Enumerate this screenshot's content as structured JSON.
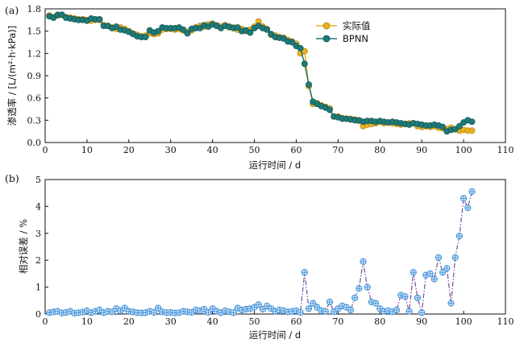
{
  "colors": {
    "actual": "#E8B21F",
    "bpnn": "#1F7A78",
    "error": "#3D8FD8",
    "error_line": "#7A50A0",
    "axis": "#111111"
  },
  "chart_data": [
    {
      "type": "line",
      "panel": "(a)",
      "xlabel": "运行时间 / d",
      "ylabel": "渗透率 / [L/(m²·h·kPa)]",
      "xlim": [
        0,
        110
      ],
      "ylim": [
        0.0,
        1.8
      ],
      "xticks": [
        0,
        10,
        20,
        30,
        40,
        50,
        60,
        70,
        80,
        90,
        100,
        110
      ],
      "yticks": [
        0.0,
        0.3,
        0.6,
        0.9,
        1.2,
        1.5,
        1.8
      ],
      "legend_position": "top-right",
      "x": [
        1,
        2,
        3,
        4,
        5,
        6,
        7,
        8,
        9,
        10,
        11,
        12,
        13,
        14,
        15,
        16,
        17,
        18,
        19,
        20,
        21,
        22,
        23,
        24,
        25,
        26,
        27,
        28,
        29,
        30,
        31,
        32,
        33,
        34,
        35,
        36,
        37,
        38,
        39,
        40,
        41,
        42,
        43,
        44,
        45,
        46,
        47,
        48,
        49,
        50,
        51,
        52,
        53,
        54,
        55,
        56,
        57,
        58,
        59,
        60,
        61,
        62,
        63,
        64,
        65,
        66,
        67,
        68,
        69,
        70,
        71,
        72,
        73,
        74,
        75,
        76,
        77,
        78,
        79,
        80,
        81,
        82,
        83,
        84,
        85,
        86,
        87,
        88,
        89,
        90,
        91,
        92,
        93,
        94,
        95,
        96,
        97,
        98,
        99,
        100,
        101,
        102
      ],
      "series": [
        {
          "name": "实际值",
          "values": [
            1.71,
            1.69,
            1.71,
            1.72,
            1.69,
            1.68,
            1.67,
            1.66,
            1.66,
            1.65,
            1.64,
            1.65,
            1.65,
            1.58,
            1.57,
            1.55,
            1.53,
            1.55,
            1.53,
            1.5,
            1.47,
            1.45,
            1.43,
            1.44,
            1.47,
            1.46,
            1.47,
            1.52,
            1.53,
            1.53,
            1.52,
            1.53,
            1.51,
            1.49,
            1.51,
            1.55,
            1.57,
            1.56,
            1.59,
            1.6,
            1.58,
            1.56,
            1.58,
            1.55,
            1.55,
            1.52,
            1.53,
            1.5,
            1.52,
            1.56,
            1.63,
            1.56,
            1.53,
            1.45,
            1.44,
            1.42,
            1.41,
            1.38,
            1.36,
            1.33,
            1.2,
            1.23,
            0.76,
            0.52,
            0.53,
            0.5,
            0.48,
            0.46,
            0.35,
            0.35,
            0.33,
            0.32,
            0.32,
            0.31,
            0.29,
            0.22,
            0.24,
            0.25,
            0.26,
            0.28,
            0.26,
            0.27,
            0.26,
            0.25,
            0.24,
            0.25,
            0.26,
            0.26,
            0.22,
            0.21,
            0.22,
            0.21,
            0.22,
            0.2,
            0.19,
            0.18,
            0.2,
            0.18,
            0.16,
            0.17,
            0.16,
            0.16
          ]
        },
        {
          "name": "BPNN",
          "values": [
            1.7,
            1.68,
            1.72,
            1.72,
            1.68,
            1.67,
            1.66,
            1.65,
            1.65,
            1.64,
            1.67,
            1.66,
            1.66,
            1.57,
            1.57,
            1.54,
            1.56,
            1.52,
            1.51,
            1.49,
            1.46,
            1.43,
            1.42,
            1.42,
            1.51,
            1.48,
            1.5,
            1.55,
            1.54,
            1.54,
            1.54,
            1.55,
            1.52,
            1.47,
            1.53,
            1.54,
            1.54,
            1.58,
            1.56,
            1.59,
            1.57,
            1.54,
            1.57,
            1.56,
            1.54,
            1.55,
            1.5,
            1.51,
            1.48,
            1.54,
            1.57,
            1.54,
            1.52,
            1.46,
            1.42,
            1.41,
            1.4,
            1.36,
            1.35,
            1.3,
            1.27,
            1.06,
            0.78,
            0.55,
            0.52,
            0.49,
            0.47,
            0.44,
            0.35,
            0.34,
            0.32,
            0.32,
            0.31,
            0.3,
            0.3,
            0.28,
            0.29,
            0.29,
            0.28,
            0.29,
            0.28,
            0.27,
            0.28,
            0.27,
            0.26,
            0.25,
            0.24,
            0.26,
            0.25,
            0.24,
            0.23,
            0.23,
            0.24,
            0.23,
            0.21,
            0.15,
            0.17,
            0.18,
            0.22,
            0.27,
            0.3,
            0.28
          ]
        }
      ]
    },
    {
      "type": "scatter",
      "panel": "(b)",
      "xlabel": "运行时间 / d",
      "ylabel": "相对误差 / %",
      "xlim": [
        0,
        110
      ],
      "ylim": [
        0,
        5
      ],
      "xticks": [
        0,
        10,
        20,
        30,
        40,
        50,
        60,
        70,
        80,
        90,
        100,
        110
      ],
      "yticks": [
        0,
        1,
        2,
        3,
        4,
        5
      ],
      "x": [
        1,
        2,
        3,
        4,
        5,
        6,
        7,
        8,
        9,
        10,
        11,
        12,
        13,
        14,
        15,
        16,
        17,
        18,
        19,
        20,
        21,
        22,
        23,
        24,
        25,
        26,
        27,
        28,
        29,
        30,
        31,
        32,
        33,
        34,
        35,
        36,
        37,
        38,
        39,
        40,
        41,
        42,
        43,
        44,
        45,
        46,
        47,
        48,
        49,
        50,
        51,
        52,
        53,
        54,
        55,
        56,
        57,
        58,
        59,
        60,
        61,
        62,
        63,
        64,
        65,
        66,
        67,
        68,
        69,
        70,
        71,
        72,
        73,
        74,
        75,
        76,
        77,
        78,
        79,
        80,
        81,
        82,
        83,
        84,
        85,
        86,
        87,
        88,
        89,
        90,
        91,
        92,
        93,
        94,
        95,
        96,
        97,
        98,
        99,
        100,
        101,
        102
      ],
      "values": [
        0.05,
        0.08,
        0.1,
        0.04,
        0.06,
        0.1,
        0.03,
        0.05,
        0.07,
        0.12,
        0.05,
        0.1,
        0.15,
        0.05,
        0.1,
        0.08,
        0.2,
        0.12,
        0.22,
        0.1,
        0.08,
        0.05,
        0.04,
        0.05,
        0.1,
        0.06,
        0.22,
        0.08,
        0.05,
        0.06,
        0.04,
        0.05,
        0.1,
        0.08,
        0.06,
        0.15,
        0.12,
        0.18,
        0.06,
        0.2,
        0.1,
        0.05,
        0.12,
        0.08,
        0.05,
        0.22,
        0.15,
        0.18,
        0.2,
        0.25,
        0.35,
        0.18,
        0.3,
        0.2,
        0.1,
        0.15,
        0.12,
        0.08,
        0.1,
        0.12,
        0.06,
        1.55,
        0.2,
        0.4,
        0.25,
        0.12,
        0.1,
        0.45,
        0.08,
        0.2,
        0.3,
        0.25,
        0.15,
        0.6,
        0.95,
        1.95,
        1.0,
        0.45,
        0.4,
        0.2,
        0.1,
        0.12,
        0.08,
        0.15,
        0.7,
        0.65,
        0.1,
        1.55,
        0.6,
        0.05,
        1.45,
        1.5,
        1.3,
        2.1,
        1.55,
        1.7,
        0.4,
        2.1,
        2.9,
        4.3,
        3.95,
        4.55
      ]
    }
  ]
}
